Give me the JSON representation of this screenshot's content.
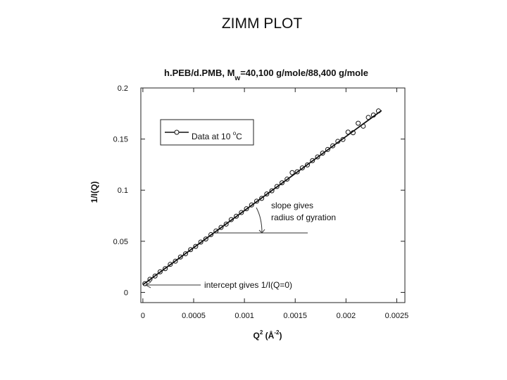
{
  "chart_data": {
    "type": "scatter",
    "title": "ZIMM PLOT",
    "subtitle": [
      "h.PEB/d.PMB, M",
      "w",
      "=40,100 g/mole/88,400 g/mole"
    ],
    "x_label": [
      "Q",
      "2",
      " (Å",
      "-2",
      ")"
    ],
    "y_label": "1/I(Q)",
    "legend_label": [
      "Data at 10 ",
      "o",
      "C"
    ],
    "annotations": [
      "slope gives",
      "radius of gyration",
      "intercept gives 1/I(Q=0)"
    ],
    "color": "#111111",
    "x": [
      2e-05,
      7e-05,
      0.00012,
      0.00017,
      0.00022,
      0.00027,
      0.00032,
      0.00037,
      0.00042,
      0.00047,
      0.00052,
      0.00057,
      0.00062,
      0.00067,
      0.00072,
      0.00077,
      0.00082,
      0.00087,
      0.00092,
      0.00097,
      0.00102,
      0.00107,
      0.00112,
      0.00117,
      0.00122,
      0.00127,
      0.00132,
      0.00137,
      0.00142,
      0.00147,
      0.00152,
      0.00157,
      0.00162,
      0.00167,
      0.00172,
      0.00177,
      0.00182,
      0.00187,
      0.00192,
      0.00197,
      0.00202,
      0.00207,
      0.00212,
      0.00217,
      0.00222,
      0.00227,
      0.00232
    ],
    "values": [
      0.0085,
      0.0128,
      0.016,
      0.0201,
      0.0232,
      0.0274,
      0.0305,
      0.0346,
      0.0378,
      0.0418,
      0.045,
      0.0492,
      0.0522,
      0.0565,
      0.0601,
      0.0636,
      0.0668,
      0.0712,
      0.0745,
      0.0781,
      0.0818,
      0.0855,
      0.0892,
      0.092,
      0.0963,
      0.0994,
      0.1036,
      0.1072,
      0.1108,
      0.1172,
      0.118,
      0.1218,
      0.1247,
      0.1289,
      0.1325,
      0.1362,
      0.1398,
      0.1434,
      0.1478,
      0.1496,
      0.1568,
      0.1562,
      0.1655,
      0.1626,
      0.1712,
      0.1735,
      0.1775
    ],
    "fit": {
      "x": [
        0,
        0.00235
      ],
      "values": [
        0.0075,
        0.1779
      ]
    },
    "xlim": [
      -2e-05,
      0.00258
    ],
    "ylim": [
      -0.01,
      0.2
    ],
    "xticks": [
      0,
      0.0005,
      0.001,
      0.0015,
      0.002,
      0.0025
    ],
    "yticks": [
      0,
      0.05,
      0.1,
      0.15,
      0.2
    ]
  }
}
